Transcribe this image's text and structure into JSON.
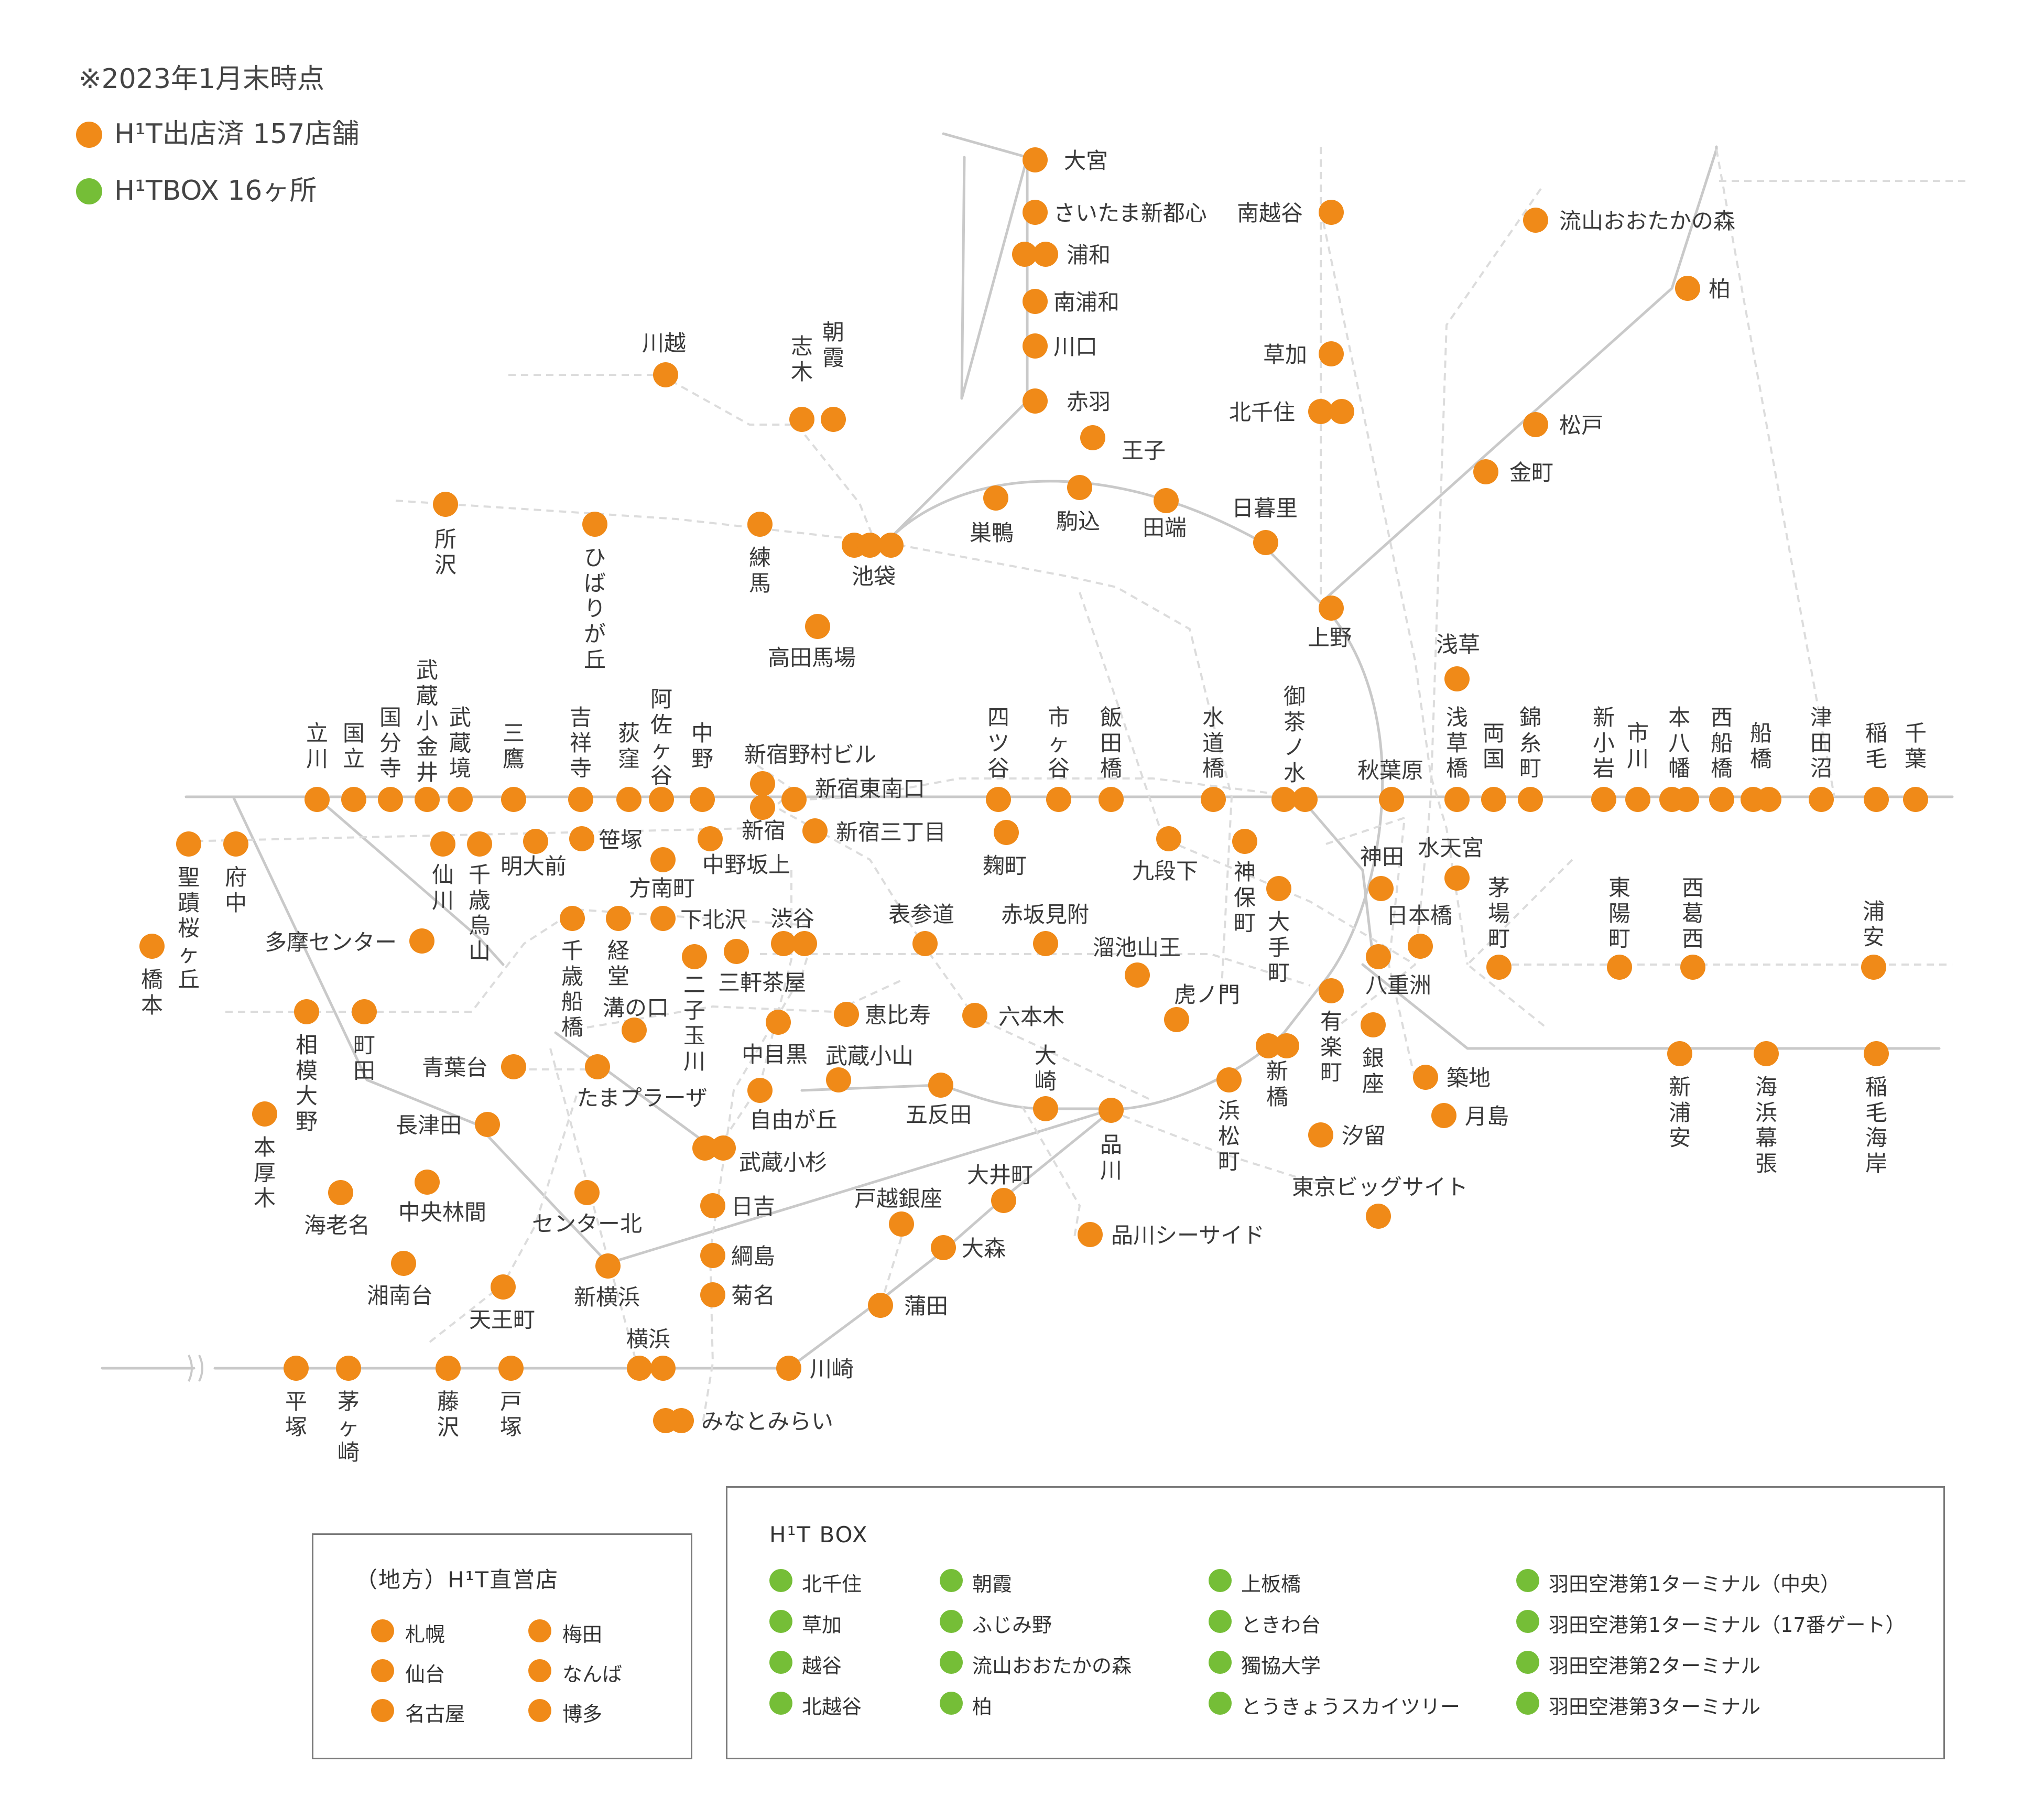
{
  "notes": {
    "date": "※2023年1月末時点",
    "legend_stores": "H¹T出店済 157店舗",
    "legend_box": "H¹TBOX 16ヶ所"
  },
  "colors": {
    "store": "#F08A18",
    "box": "#75BE37",
    "line": "#c9c9c9",
    "dash": "#dcdcdc"
  },
  "stations": [
    "大宮",
    "さいたま新都心",
    "浦和",
    "南浦和",
    "川口",
    "赤羽",
    "王子",
    "駒込",
    "巣鴨",
    "田端",
    "日暮里",
    "上野",
    "池袋",
    "南越谷",
    "草加",
    "北千住",
    "流山おおたかの森",
    "柏",
    "松戸",
    "金町",
    "浅草",
    "川越",
    "朝霞",
    "志木",
    "所沢",
    "ひばりが丘",
    "練馬",
    "高田馬場",
    "立川",
    "国立",
    "国分寺",
    "武蔵小金井",
    "武蔵境",
    "三鷹",
    "吉祥寺",
    "荻窪",
    "阿佐ヶ谷",
    "中野",
    "新宿野村ビル",
    "新宿東南口",
    "新宿",
    "新宿三丁目",
    "中野坂上",
    "方南町",
    "明大前",
    "笹塚",
    "仙川",
    "千歳烏山",
    "四ツ谷",
    "市ヶ谷",
    "飯田橋",
    "水道橋",
    "御茶ノ水",
    "秋葉原",
    "浅草橋",
    "両国",
    "錦糸町",
    "新小岩",
    "市川",
    "本八幡",
    "西船橋",
    "船橋",
    "津田沼",
    "稲毛",
    "千葉",
    "麹町",
    "九段下",
    "神保町",
    "神田",
    "大手町",
    "水天宮",
    "日本橋",
    "茅場町",
    "東陽町",
    "西葛西",
    "浦安",
    "八重洲",
    "有楽町",
    "銀座",
    "新橋",
    "築地",
    "月島",
    "汐留",
    "浜松町",
    "東京ビッグサイト",
    "新浦安",
    "海浜幕張",
    "稲毛海岸",
    "聖蹟桜ヶ丘",
    "府中",
    "橋本",
    "多摩センター",
    "千歳船橋",
    "経堂",
    "下北沢",
    "二子玉川",
    "三軒茶屋",
    "渋谷",
    "表参道",
    "赤坂見附",
    "溜池山王",
    "虎ノ門",
    "六本木",
    "恵比寿",
    "中目黒",
    "武蔵小山",
    "自由が丘",
    "五反田",
    "大崎",
    "品川",
    "溝の口",
    "たまプラーザ",
    "青葉台",
    "長津田",
    "中央林間",
    "海老名",
    "センター北",
    "相模大野",
    "町田",
    "本厚木",
    "武蔵小杉",
    "日吉",
    "綱島",
    "菊名",
    "新横浜",
    "湘南台",
    "天王町",
    "横浜",
    "みなとみらい",
    "戸越銀座",
    "大井町",
    "大森",
    "蒲田",
    "川崎",
    "品川シーサイド",
    "平塚",
    "茅ヶ崎",
    "藤沢",
    "戸塚"
  ],
  "regional": {
    "title": "（地方）H¹T直営店",
    "items": [
      "札幌",
      "梅田",
      "仙台",
      "なんば",
      "名古屋",
      "博多"
    ]
  },
  "hitbox": {
    "title": "H¹T BOX",
    "items": [
      "北千住",
      "朝霞",
      "上板橋",
      "羽田空港第1ターミナル（中央）",
      "草加",
      "ふじみ野",
      "ときわ台",
      "羽田空港第1ターミナル（17番ゲート）",
      "越谷",
      "流山おおたかの森",
      "獨協大学",
      "羽田空港第2ターミナル",
      "北越谷",
      "柏",
      "とうきょうスカイツリー",
      "羽田空港第3ターミナル"
    ]
  }
}
